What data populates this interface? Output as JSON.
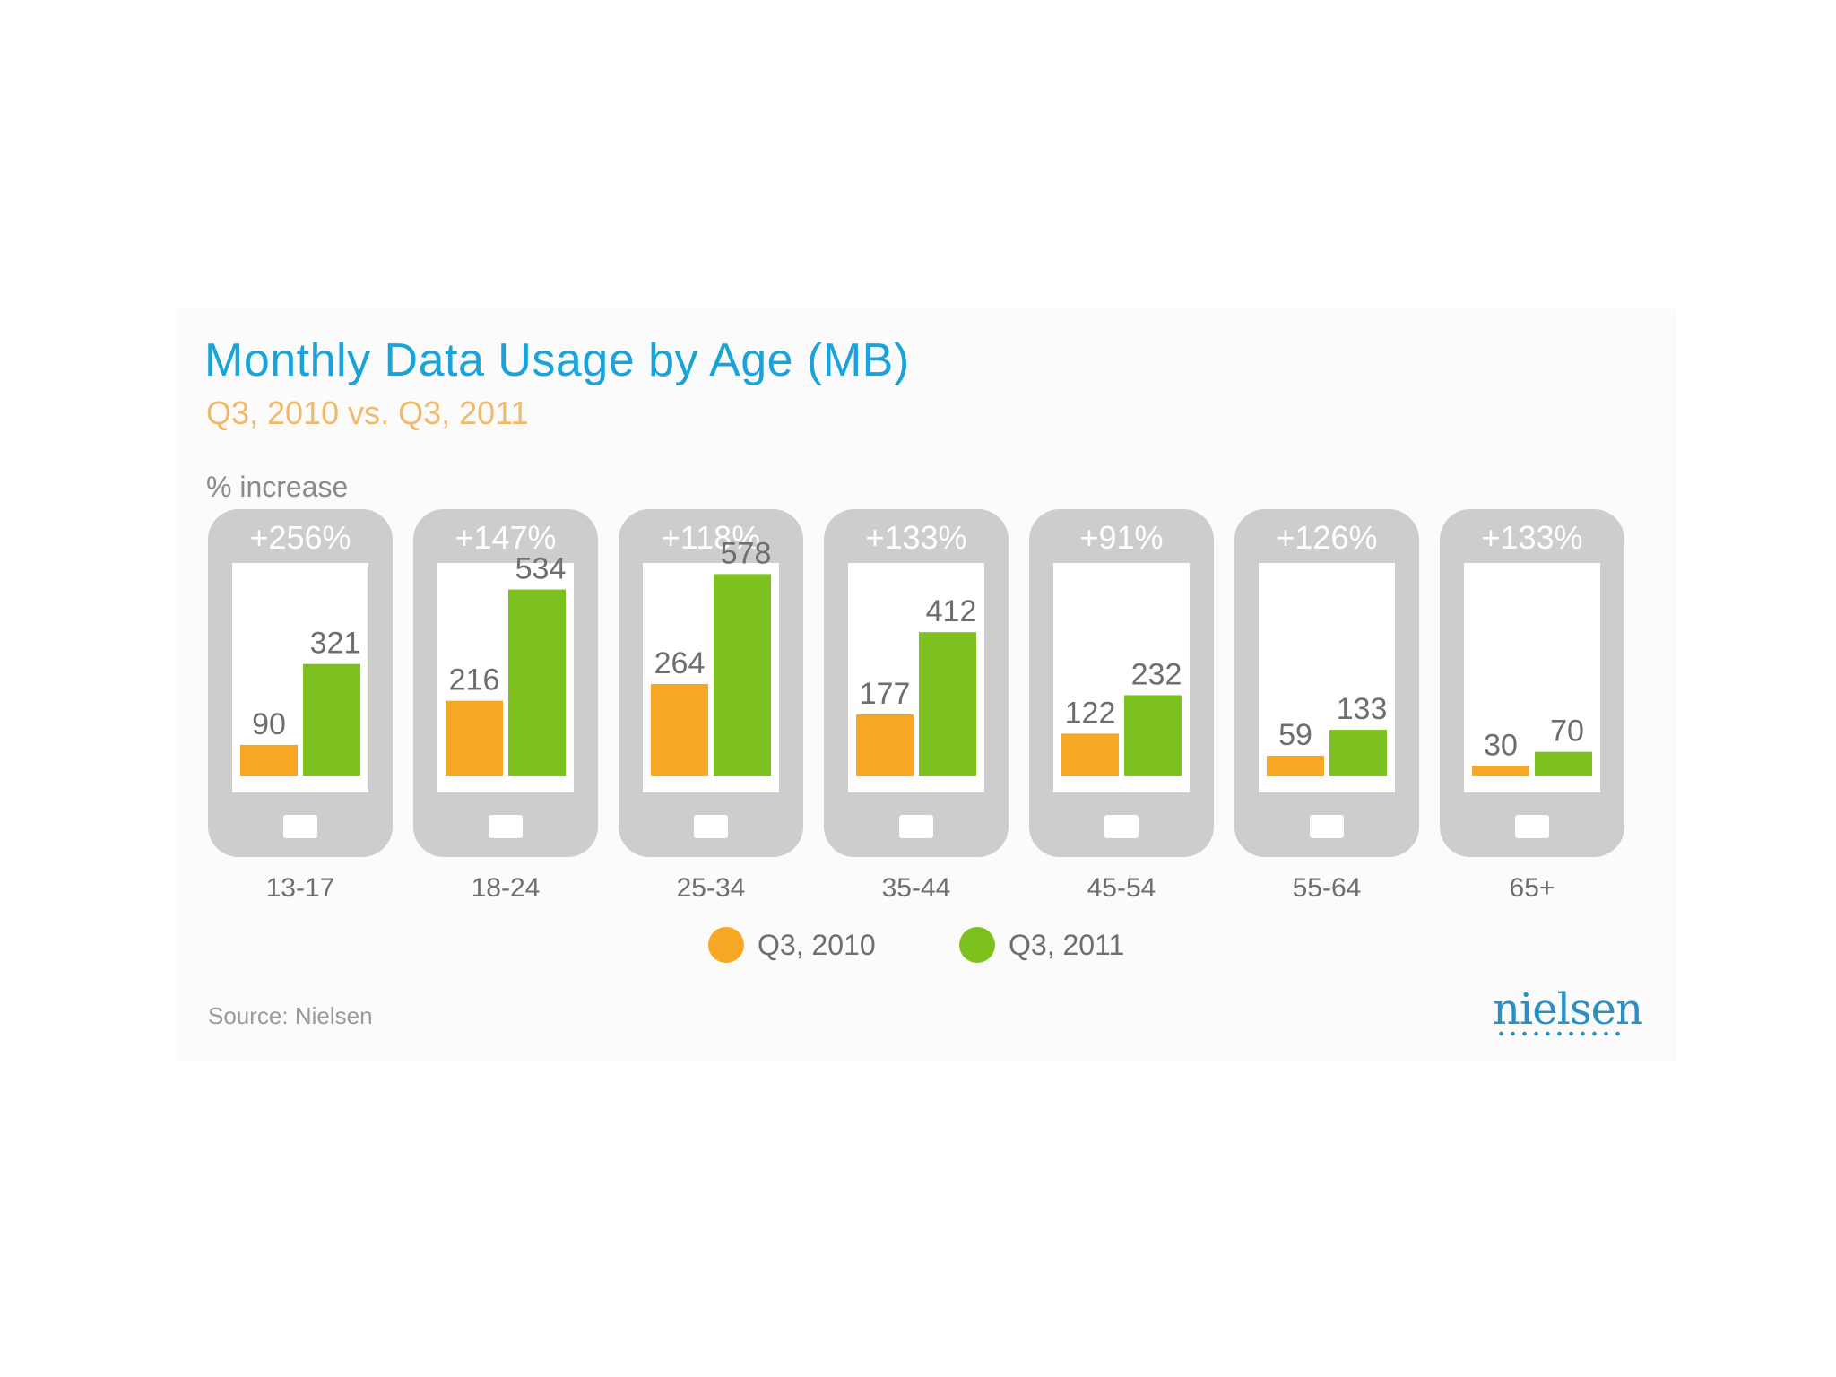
{
  "chart_data": {
    "type": "bar",
    "title": "Monthly Data Usage by Age (MB)",
    "subtitle": "Q3, 2010 vs. Q3, 2011",
    "annotation_label": "% increase",
    "categories": [
      "13-17",
      "18-24",
      "25-34",
      "35-44",
      "45-54",
      "55-64",
      "65+"
    ],
    "series": [
      {
        "name": "Q3, 2010",
        "color": "#f6a723",
        "values": [
          90,
          216,
          264,
          177,
          122,
          59,
          30
        ]
      },
      {
        "name": "Q3, 2011",
        "color": "#7dc11e",
        "values": [
          321,
          534,
          578,
          412,
          232,
          133,
          70
        ]
      }
    ],
    "increases": [
      "+256%",
      "+147%",
      "+118%",
      "+133%",
      "+91%",
      "+126%",
      "+133%"
    ],
    "ylim": [
      0,
      620
    ],
    "xlabel": "",
    "ylabel": "",
    "grid": false,
    "legend": "bottom-center"
  },
  "source": "Source: Nielsen",
  "logo_text": "nielsen",
  "colors": {
    "title": "#1aa3d9",
    "subtitle": "#f1b96b",
    "phone": "#cdcdcd",
    "axis_text": "#6e6e6e"
  }
}
